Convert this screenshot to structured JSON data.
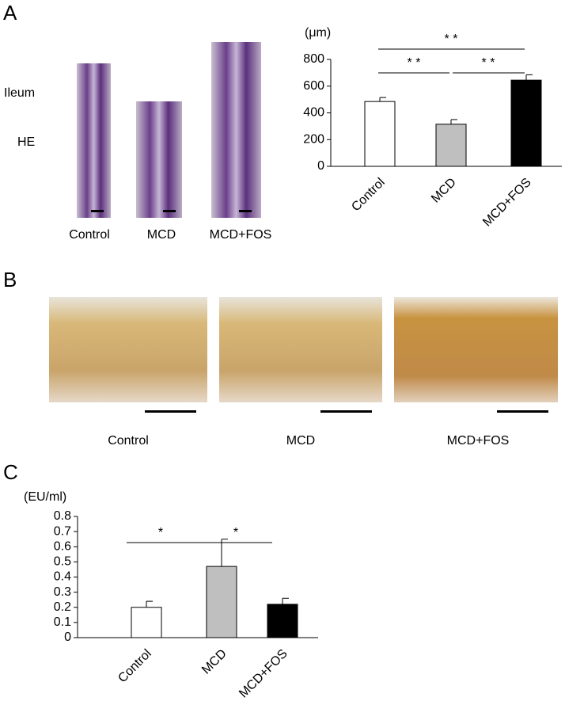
{
  "panels": {
    "a": "A",
    "b": "B",
    "c": "C"
  },
  "panel_a": {
    "row_labels": [
      "Ileum",
      "HE"
    ],
    "captions": [
      "Control",
      "MCD",
      "MCD+FOS"
    ]
  },
  "panel_b": {
    "captions": [
      "Control",
      "MCD",
      "MCD+FOS"
    ]
  },
  "chart_data": [
    {
      "type": "bar",
      "y_label": "(μm)",
      "categories": [
        "Control",
        "MCD",
        "MCD+FOS"
      ],
      "values": [
        485,
        315,
        645
      ],
      "errors": [
        30,
        35,
        40
      ],
      "colors": [
        "#ffffff",
        "#bfbfbf",
        "#000000"
      ],
      "ylim": [
        0,
        800
      ],
      "yticks": [
        0,
        200,
        400,
        600,
        800
      ],
      "annotations": [
        "* *",
        "* *",
        "* *"
      ]
    },
    {
      "type": "bar",
      "y_label": "(EU/ml)",
      "categories": [
        "Control",
        "MCD",
        "MCD+FOS"
      ],
      "values": [
        0.2,
        0.47,
        0.22
      ],
      "errors": [
        0.04,
        0.18,
        0.04
      ],
      "colors": [
        "#ffffff",
        "#bfbfbf",
        "#000000"
      ],
      "ylim": [
        0,
        0.8
      ],
      "yticks": [
        0,
        0.1,
        0.2,
        0.3,
        0.4,
        0.5,
        0.6,
        0.7,
        0.8
      ],
      "annotations": [
        "*",
        "*"
      ]
    }
  ]
}
